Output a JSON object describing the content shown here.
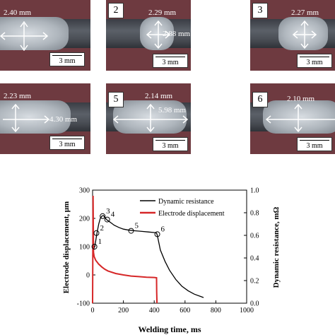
{
  "panels": [
    {
      "num": "",
      "width_label": "2.40 mm",
      "length_label": "",
      "scale": "3 mm"
    },
    {
      "num": "2",
      "width_label": "2.29 mm",
      "length_label": "2.88 mm",
      "scale": "3 mm"
    },
    {
      "num": "3",
      "width_label": "2.27 mm",
      "length_label": "",
      "scale": "3 mm"
    },
    {
      "num": "",
      "width_label": "2.23 mm",
      "length_label": "4.30 mm",
      "scale": "3 mm"
    },
    {
      "num": "5",
      "width_label": "2.14 mm",
      "length_label": "5.98 mm",
      "scale": "3 mm"
    },
    {
      "num": "6",
      "width_label": "2.10 mm",
      "length_label": "",
      "scale": "3 mm"
    }
  ],
  "chart_data": {
    "type": "line",
    "xlabel": "Welding time, ms",
    "ylabel_left": "Electrode displacement, μm",
    "ylabel_right": "Dynamic resistance, mΩ",
    "xlim": [
      0,
      1000
    ],
    "ylim_left": [
      -100,
      300
    ],
    "ylim_right": [
      0,
      1.0
    ],
    "x_ticks": [
      "0",
      "200",
      "400",
      "600",
      "800",
      "1000"
    ],
    "y_left_ticks": [
      "-100",
      "0",
      "100",
      "200",
      "300"
    ],
    "y_right_ticks": [
      "0.0",
      "0.2",
      "0.4",
      "0.6",
      "0.8",
      "1.0"
    ],
    "legend": {
      "position": "top-right",
      "entries": [
        "Dynamic resistance",
        "Electrode displacement"
      ]
    },
    "colors": {
      "dynamic_resistance": "#000000",
      "electrode_displacement": "#d62728"
    },
    "series": [
      {
        "name": "Dynamic resistance",
        "axis": "right",
        "x": [
          0,
          5,
          10,
          15,
          20,
          25,
          30,
          40,
          50,
          60,
          70,
          80,
          90,
          100,
          120,
          140,
          170,
          200,
          240,
          280,
          320,
          360,
          400,
          415,
          420,
          440,
          470,
          500,
          540,
          580,
          620,
          660,
          700,
          720
        ],
        "y": [
          0.42,
          0.46,
          0.49,
          0.51,
          0.55,
          0.59,
          0.63,
          0.7,
          0.75,
          0.77,
          0.775,
          0.76,
          0.74,
          0.73,
          0.71,
          0.69,
          0.67,
          0.655,
          0.645,
          0.64,
          0.635,
          0.63,
          0.625,
          0.62,
          0.6,
          0.47,
          0.37,
          0.29,
          0.21,
          0.15,
          0.11,
          0.08,
          0.06,
          0.05
        ]
      },
      {
        "name": "Electrode displacement",
        "axis": "left",
        "x": [
          0,
          3,
          6,
          10,
          20,
          40,
          60,
          80,
          100,
          150,
          200,
          250,
          300,
          350,
          400,
          415,
          416,
          418
        ],
        "y": [
          -100,
          280,
          80,
          65,
          52,
          38,
          28,
          20,
          14,
          5,
          0,
          -4,
          -6,
          -8,
          -9,
          -10,
          -60,
          -100
        ]
      }
    ],
    "markers": [
      {
        "label": "1",
        "x": 12,
        "y": 0.5
      },
      {
        "label": "2",
        "x": 25,
        "y": 0.62
      },
      {
        "label": "3",
        "x": 65,
        "y": 0.77
      },
      {
        "label": "4",
        "x": 95,
        "y": 0.74
      },
      {
        "label": "5",
        "x": 250,
        "y": 0.64
      },
      {
        "label": "6",
        "x": 420,
        "y": 0.61
      }
    ]
  }
}
